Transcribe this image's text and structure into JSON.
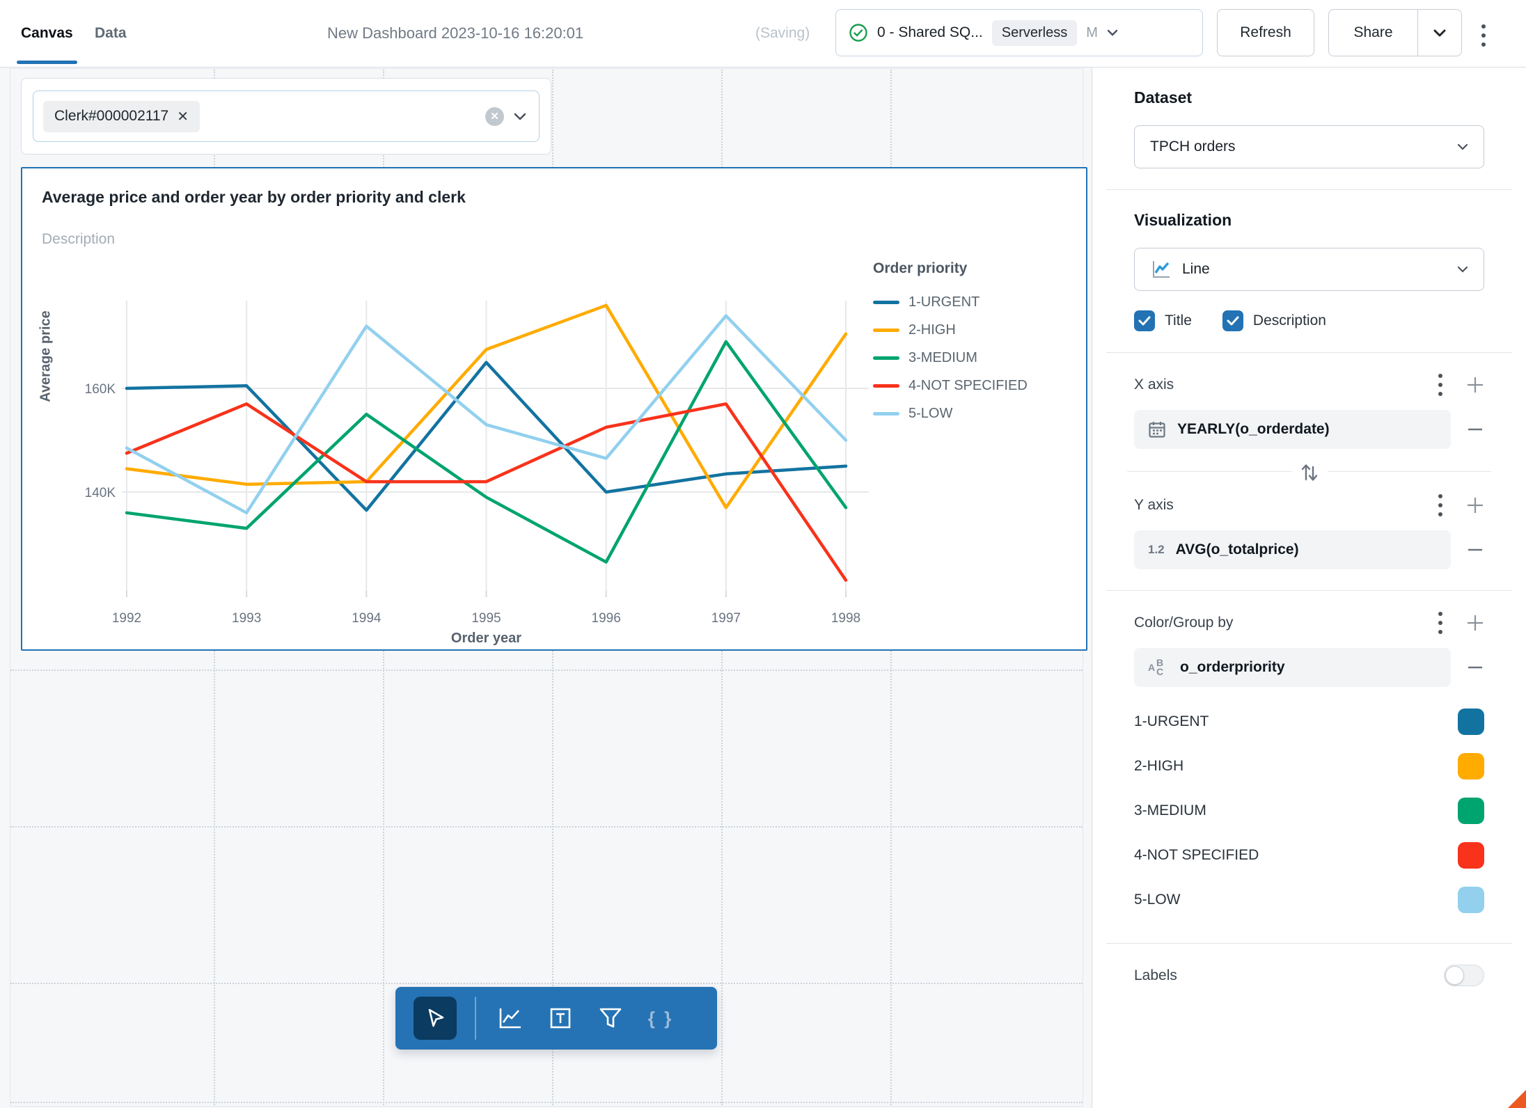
{
  "topbar": {
    "tab_canvas": "Canvas",
    "tab_data": "Data",
    "title": "New Dashboard 2023-10-16 16:20:01",
    "saving_indicator": "(Saving)",
    "warehouse": {
      "name": "0 - Shared SQ...",
      "badge": "Serverless",
      "size": "M"
    },
    "refresh_label": "Refresh",
    "share_label": "Share"
  },
  "filter": {
    "chip_value": "Clerk#000002117",
    "chip_remove_glyph": "✕",
    "clear_glyph": "✕"
  },
  "widget": {
    "title": "Average price and order year by order priority and clerk",
    "description_placeholder": "Description"
  },
  "chart_data": {
    "type": "line",
    "title": "Average price and order year by order priority and clerk",
    "x_label": "Order year",
    "y_label": "Average price",
    "legend_title": "Order priority",
    "legend_position": "right",
    "grid": true,
    "x": [
      1992,
      1993,
      1994,
      1995,
      1996,
      1997,
      1998
    ],
    "y_ticks": [
      {
        "v": 140000,
        "label": "140K"
      },
      {
        "v": 160000,
        "label": "160K"
      }
    ],
    "ylim": [
      121000,
      177000
    ],
    "series": [
      {
        "name": "1-URGENT",
        "color": "#1273A0",
        "values": [
          160000,
          160500,
          136500,
          165000,
          140000,
          143500,
          145000
        ]
      },
      {
        "name": "2-HIGH",
        "color": "#FFAB00",
        "values": [
          144500,
          141500,
          142000,
          167500,
          176000,
          137000,
          170500
        ]
      },
      {
        "name": "3-MEDIUM",
        "color": "#00A46E",
        "values": [
          136000,
          133000,
          155000,
          139000,
          126500,
          169000,
          137000
        ]
      },
      {
        "name": "4-NOT SPECIFIED",
        "color": "#F8321B",
        "values": [
          147500,
          157000,
          142000,
          142000,
          152500,
          157000,
          123000
        ]
      },
      {
        "name": "5-LOW",
        "color": "#92D0EE",
        "values": [
          148500,
          136000,
          172000,
          153000,
          146500,
          174000,
          150000
        ]
      }
    ]
  },
  "sidebar": {
    "dataset_label": "Dataset",
    "dataset_value": "TPCH orders",
    "visualization_label": "Visualization",
    "visualization_value": "Line",
    "title_checkbox_label": "Title",
    "description_checkbox_label": "Description",
    "x_axis_label": "X axis",
    "x_axis_field": "YEARLY(o_orderdate)",
    "y_axis_label": "Y axis",
    "y_axis_field": "AVG(o_totalprice)",
    "y_axis_field_icon": "1.2",
    "color_group_label": "Color/Group by",
    "color_group_field": "o_orderpriority",
    "groups": [
      {
        "label": "1-URGENT",
        "color": "#1273A0"
      },
      {
        "label": "2-HIGH",
        "color": "#FFAB00"
      },
      {
        "label": "3-MEDIUM",
        "color": "#00A46E"
      },
      {
        "label": "4-NOT SPECIFIED",
        "color": "#F8321B"
      },
      {
        "label": "5-LOW",
        "color": "#92D0EE"
      }
    ],
    "labels_label": "Labels",
    "labels_on": false
  },
  "toolbar_icons": [
    "cursor",
    "line-chart",
    "text-box",
    "filter",
    "code-braces"
  ],
  "colors": {
    "accent": "#2272B4",
    "toolbar_bg": "#2573B4",
    "selected_tile": "#0B3B60",
    "success": "#1D9E50"
  }
}
